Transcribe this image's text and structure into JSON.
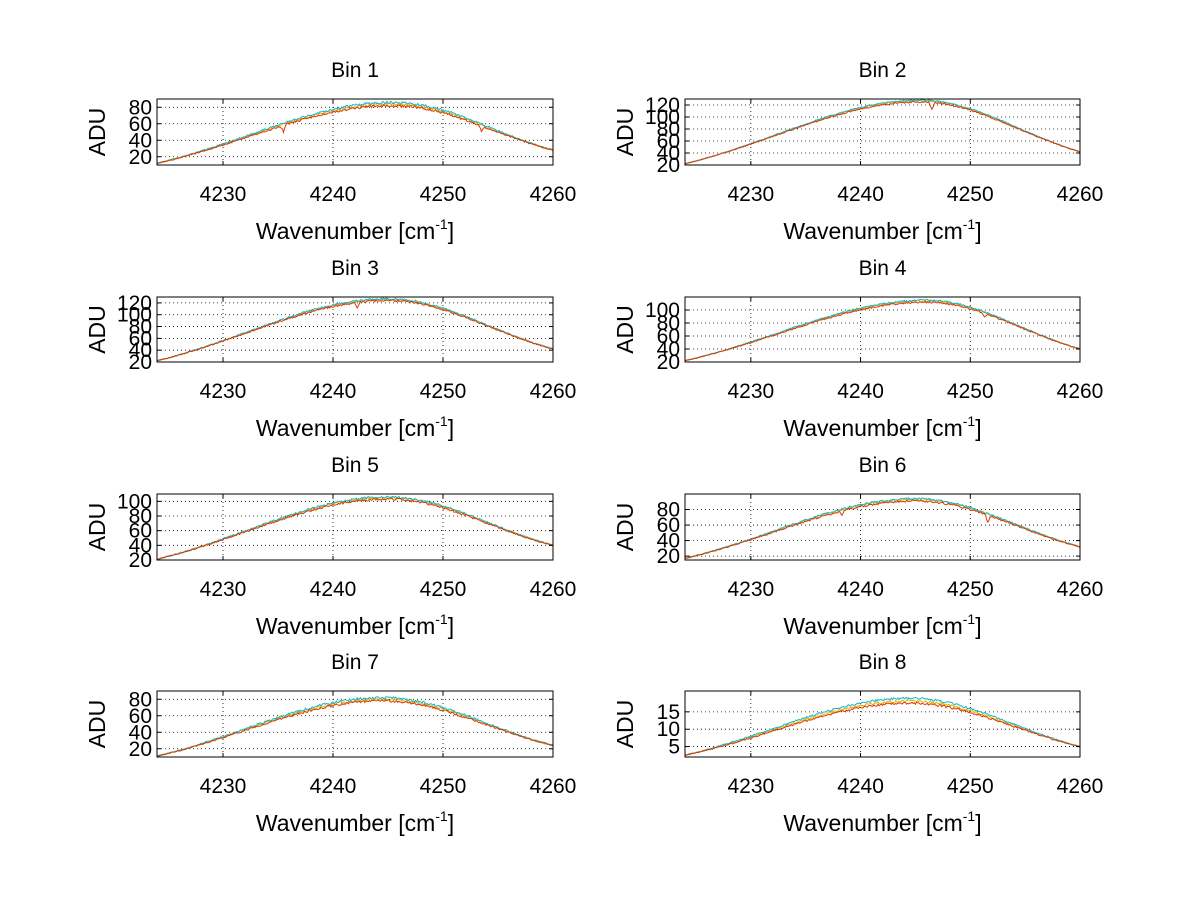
{
  "chart_data": [
    {
      "type": "line",
      "title": "Bin 1",
      "xlabel": "Wavenumber [cm",
      "xlabel_sup": "-1",
      "xlabel_end": "]",
      "ylabel": "ADU",
      "xlim": [
        4224,
        4260
      ],
      "ylim": [
        10,
        90
      ],
      "xticks": [
        4230,
        4240,
        4250,
        4260
      ],
      "yticks": [
        20,
        40,
        60,
        80
      ],
      "peak_x": 4245.5,
      "peak": 82,
      "base_left": 12,
      "base_right": 28,
      "offsets": [
        0,
        2,
        4
      ],
      "dips": [
        {
          "x": 4235.5,
          "depth": 8
        },
        {
          "x": 4253.5,
          "depth": 7
        }
      ],
      "noise": 1.5
    },
    {
      "type": "line",
      "title": "Bin 2",
      "xlabel": "Wavenumber [cm",
      "xlabel_sup": "-1",
      "xlabel_end": "]",
      "ylabel": "ADU",
      "xlim": [
        4224,
        4260
      ],
      "ylim": [
        20,
        130
      ],
      "xticks": [
        4230,
        4240,
        4250,
        4260
      ],
      "yticks": [
        20,
        40,
        60,
        80,
        100,
        120
      ],
      "peak_x": 4245.5,
      "peak": 125,
      "base_left": 22,
      "base_right": 42,
      "offsets": [
        0,
        2,
        3
      ],
      "dips": [
        {
          "x": 4246.5,
          "depth": 12
        }
      ],
      "noise": 1.2
    },
    {
      "type": "line",
      "title": "Bin 3",
      "xlabel": "Wavenumber [cm",
      "xlabel_sup": "-1",
      "xlabel_end": "]",
      "ylabel": "ADU",
      "xlim": [
        4224,
        4260
      ],
      "ylim": [
        20,
        130
      ],
      "xticks": [
        4230,
        4240,
        4250,
        4260
      ],
      "yticks": [
        20,
        40,
        60,
        80,
        100,
        120
      ],
      "peak_x": 4245.0,
      "peak": 124,
      "base_left": 22,
      "base_right": 42,
      "offsets": [
        0,
        2,
        3
      ],
      "dips": [
        {
          "x": 4242.2,
          "depth": 10
        }
      ],
      "noise": 1.6
    },
    {
      "type": "line",
      "title": "Bin 4",
      "xlabel": "Wavenumber [cm",
      "xlabel_sup": "-1",
      "xlabel_end": "]",
      "ylabel": "ADU",
      "xlim": [
        4224,
        4260
      ],
      "ylim": [
        20,
        120
      ],
      "xticks": [
        4230,
        4240,
        4250,
        4260
      ],
      "yticks": [
        20,
        40,
        60,
        80,
        100
      ],
      "peak_x": 4246.0,
      "peak": 112,
      "base_left": 22,
      "base_right": 40,
      "offsets": [
        0,
        2,
        3
      ],
      "dips": [
        {
          "x": 4251.3,
          "depth": 6
        }
      ],
      "noise": 1.4
    },
    {
      "type": "line",
      "title": "Bin 5",
      "xlabel": "Wavenumber [cm",
      "xlabel_sup": "-1",
      "xlabel_end": "]",
      "ylabel": "ADU",
      "xlim": [
        4224,
        4260
      ],
      "ylim": [
        20,
        110
      ],
      "xticks": [
        4230,
        4240,
        4250,
        4260
      ],
      "yticks": [
        20,
        40,
        60,
        80,
        100
      ],
      "peak_x": 4245.0,
      "peak": 103,
      "base_left": 21,
      "base_right": 40,
      "offsets": [
        0,
        2,
        3
      ],
      "dips": [],
      "noise": 1.6
    },
    {
      "type": "line",
      "title": "Bin 6",
      "xlabel": "Wavenumber [cm",
      "xlabel_sup": "-1",
      "xlabel_end": "]",
      "ylabel": "ADU",
      "xlim": [
        4224,
        4260
      ],
      "ylim": [
        15,
        100
      ],
      "xticks": [
        4230,
        4240,
        4250,
        4260
      ],
      "yticks": [
        20,
        40,
        60,
        80
      ],
      "peak_x": 4245.0,
      "peak": 91,
      "base_left": 17,
      "base_right": 32,
      "offsets": [
        0,
        2,
        3
      ],
      "dips": [
        {
          "x": 4251.6,
          "depth": 9
        },
        {
          "x": 4238.3,
          "depth": 5
        }
      ],
      "noise": 1.4
    },
    {
      "type": "line",
      "title": "Bin 7",
      "xlabel": "Wavenumber [cm",
      "xlabel_sup": "-1",
      "xlabel_end": "]",
      "ylabel": "ADU",
      "xlim": [
        4224,
        4260
      ],
      "ylim": [
        10,
        90
      ],
      "xticks": [
        4230,
        4240,
        4250,
        4260
      ],
      "yticks": [
        20,
        40,
        60,
        80
      ],
      "peak_x": 4244.5,
      "peak": 78,
      "base_left": 11,
      "base_right": 24,
      "offsets": [
        0,
        2,
        4
      ],
      "dips": [],
      "noise": 1.6
    },
    {
      "type": "line",
      "title": "Bin 8",
      "xlabel": "Wavenumber [cm",
      "xlabel_sup": "-1",
      "xlabel_end": "]",
      "ylabel": "ADU",
      "xlim": [
        4224,
        4260
      ],
      "ylim": [
        2,
        21
      ],
      "xticks": [
        4230,
        4240,
        4250,
        4260
      ],
      "yticks": [
        5,
        10,
        15
      ],
      "peak_x": 4244.5,
      "peak": 17.5,
      "base_left": 2.5,
      "base_right": 5,
      "offsets": [
        0,
        0.6,
        1.4
      ],
      "dips": [],
      "noise": 0.35
    }
  ],
  "series_colors": [
    "#d93a00",
    "#e6b400",
    "#1ab5cc"
  ]
}
